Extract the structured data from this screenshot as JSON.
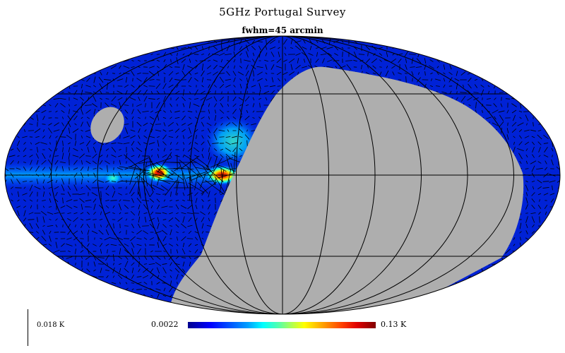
{
  "header": {
    "title": "5GHz Portugal Survey",
    "subtitle": "fwhm=45 arcmin"
  },
  "scale": {
    "label": "0.018  K"
  },
  "colorbar": {
    "min_label": "0.0022",
    "max_label": "0.13  K"
  },
  "colors": {
    "background_map": "#0022d6",
    "mask": "#aeaeae",
    "graticule": "#000000",
    "vectors": "#000000"
  }
}
